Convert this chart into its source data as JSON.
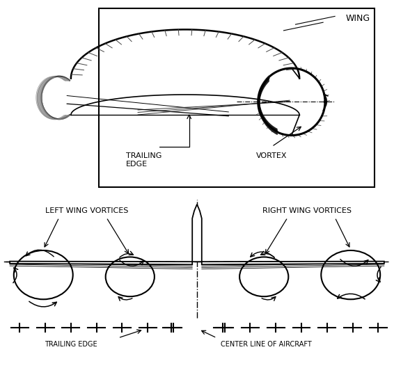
{
  "bg_color": "#ffffff",
  "line_color": "#000000",
  "label_wing": "WING",
  "label_trailing_edge_top": "TRAILING\nEDGE",
  "label_vortex": "VORTEX",
  "label_left_vortices": "LEFT WING VORTICES",
  "label_right_vortices": "RIGHT WING VORTICES",
  "label_trailing_edge_bot": "TRAILING EDGE",
  "label_center_line": "CENTER LINE OF AIRCRAFT",
  "font_size": 8,
  "font_size_sm": 7
}
